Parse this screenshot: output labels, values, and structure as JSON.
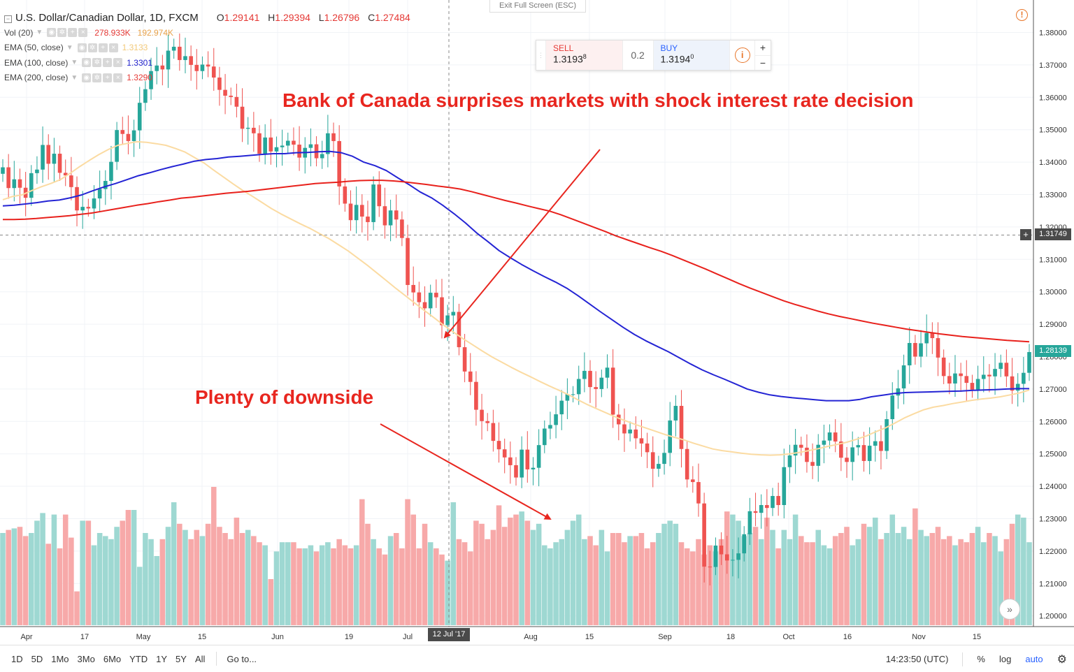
{
  "header": {
    "symbol": "U.S. Dollar/Canadian Dollar, 1D, FXCM",
    "o_label": "O",
    "o_value": "1.29141",
    "h_label": "H",
    "h_value": "1.29394",
    "l_label": "L",
    "l_value": "1.26796",
    "c_label": "C",
    "c_value": "1.27484",
    "fullscreen_label": "Exit Full Screen (ESC)"
  },
  "indicators": {
    "vol": {
      "name": "Vol (20)",
      "value_a": "278.933K",
      "value_b": "192.974K"
    },
    "ema50": {
      "name": "EMA (50, close)",
      "value": "1.3133"
    },
    "ema100": {
      "name": "EMA (100, close)",
      "value": "1.3301"
    },
    "ema200": {
      "name": "EMA (200, close)",
      "value": "1.3290"
    }
  },
  "trade_panel": {
    "sell_label": "SELL",
    "sell_price": "1.3193",
    "sell_sup": "8",
    "spread": "0.2",
    "buy_label": "BUY",
    "buy_price": "1.3194",
    "buy_sup": "0",
    "info_icon": "info-icon",
    "plus": "+",
    "minus": "−"
  },
  "annotations": {
    "headline": "Bank of Canada surprises markets with shock interest rate decision",
    "downside": "Plenty of downside"
  },
  "badges": {
    "crosshair_price": "1.31749",
    "last_price": "1.28139",
    "crosshair_date": "12 Jul '17"
  },
  "toolbar": {
    "timeframes": [
      "1D",
      "5D",
      "1Mo",
      "3Mo",
      "6Mo",
      "YTD",
      "1Y",
      "5Y",
      "All"
    ],
    "goto": "Go to...",
    "clock": "14:23:50 (UTC)",
    "percent": "%",
    "log": "log",
    "auto": "auto"
  },
  "colors": {
    "up": "#26a69a",
    "down": "#ef5350",
    "vol_up": "#9ed8d2",
    "vol_down": "#f7a9a9",
    "ema50": "#fbdba2",
    "ema100": "#2424d4",
    "ema200": "#e8211c",
    "annotation": "#e8261f",
    "grid": "#f0f3f7"
  },
  "chart_data": {
    "type": "candlestick",
    "title": "U.S. Dollar/Canadian Dollar, 1D, FXCM",
    "ylim": [
      1.195,
      1.385
    ],
    "y_ticks": [
      "1.38000",
      "1.37000",
      "1.36000",
      "1.35000",
      "1.34000",
      "1.33000",
      "1.32000",
      "1.31000",
      "1.30000",
      "1.29000",
      "1.28000",
      "1.27000",
      "1.26000",
      "1.25000",
      "1.24000",
      "1.23000",
      "1.22000",
      "1.21000",
      "1.20000"
    ],
    "x_ticks": [
      "Apr",
      "17",
      "May",
      "15",
      "Jun",
      "19",
      "Jul",
      "Aug",
      "15",
      "Sep",
      "18",
      "Oct",
      "16",
      "Nov",
      "15"
    ],
    "closes": [
      1.3384,
      1.332,
      1.3347,
      1.3321,
      1.329,
      1.3366,
      1.3377,
      1.3453,
      1.3395,
      1.3426,
      1.3367,
      1.3359,
      1.3323,
      1.3251,
      1.3262,
      1.3257,
      1.3288,
      1.3317,
      1.3342,
      1.3401,
      1.3499,
      1.3487,
      1.3465,
      1.3498,
      1.3583,
      1.3625,
      1.3681,
      1.3698,
      1.3686,
      1.3744,
      1.3756,
      1.3715,
      1.3727,
      1.37,
      1.3681,
      1.3701,
      1.3695,
      1.3661,
      1.3623,
      1.3605,
      1.3601,
      1.3571,
      1.3503,
      1.3506,
      1.3489,
      1.3426,
      1.3476,
      1.3433,
      1.3446,
      1.3451,
      1.3466,
      1.3454,
      1.3414,
      1.3444,
      1.3455,
      1.3412,
      1.3425,
      1.3489,
      1.3465,
      1.3325,
      1.3272,
      1.3221,
      1.3268,
      1.3232,
      1.3215,
      1.3331,
      1.3264,
      1.3205,
      1.3251,
      1.3223,
      1.3166,
      1.3021,
      1.2998,
      1.2968,
      1.2949,
      1.2997,
      1.2983,
      1.2897,
      1.2927,
      1.2938,
      1.2829,
      1.2754,
      1.2722,
      1.2636,
      1.2601,
      1.2595,
      1.254,
      1.2514,
      1.2489,
      1.2465,
      1.2427,
      1.2513,
      1.2452,
      1.2457,
      1.2527,
      1.2578,
      1.2589,
      1.2622,
      1.2664,
      1.2684,
      1.2684,
      1.2731,
      1.2756,
      1.2706,
      1.27,
      1.2735,
      1.2766,
      1.2621,
      1.2591,
      1.2563,
      1.2575,
      1.2548,
      1.2532,
      1.2505,
      1.2454,
      1.2469,
      1.2503,
      1.2603,
      1.2648,
      1.2515,
      1.2421,
      1.2413,
      1.2347,
      1.2152,
      1.2151,
      1.2217,
      1.219,
      1.2171,
      1.2173,
      1.2193,
      1.2252,
      1.2323,
      1.2318,
      1.2342,
      1.2333,
      1.237,
      1.2342,
      1.2459,
      1.2495,
      1.2528,
      1.2519,
      1.2475,
      1.2463,
      1.2528,
      1.2541,
      1.2566,
      1.2538,
      1.2488,
      1.2475,
      1.252,
      1.2527,
      1.2478,
      1.2525,
      1.2539,
      1.2509,
      1.2607,
      1.268,
      1.2702,
      1.2773,
      1.2842,
      1.28,
      1.2841,
      1.2873,
      1.2857,
      1.2797,
      1.274,
      1.2717,
      1.2748,
      1.274,
      1.2719,
      1.2698,
      1.2731,
      1.2744,
      1.2739,
      1.2762,
      1.2781,
      1.2739,
      1.2695,
      1.2716,
      1.275,
      1.2814
    ],
    "ema50": [
      1.3284,
      1.3294,
      1.3299,
      1.3312,
      1.3324,
      1.3334,
      1.3346,
      1.3365,
      1.3386,
      1.3405,
      1.3423,
      1.3439,
      1.3452,
      1.3458,
      1.3463,
      1.3461,
      1.3457,
      1.3452,
      1.3442,
      1.3431,
      1.3414,
      1.3397,
      1.3375,
      1.3354,
      1.3333,
      1.3313,
      1.3295,
      1.3276,
      1.3257,
      1.324,
      1.3225,
      1.321,
      1.3196,
      1.318,
      1.3164,
      1.3145,
      1.3126,
      1.3104,
      1.3082,
      1.3058,
      1.3034,
      1.301,
      1.2987,
      1.2964,
      1.2941,
      1.2919,
      1.2896,
      1.2875,
      1.2855,
      1.2836,
      1.2817,
      1.2799,
      1.2783,
      1.2767,
      1.2752,
      1.2738,
      1.2723,
      1.2709,
      1.2696,
      1.2682,
      1.2666,
      1.2651,
      1.2638,
      1.2625,
      1.2612,
      1.2601,
      1.259,
      1.258,
      1.257,
      1.256,
      1.2551,
      1.2543,
      1.2533,
      1.2524,
      1.2515,
      1.251,
      1.2506,
      1.2502,
      1.2499,
      1.2497,
      1.2496,
      1.2497,
      1.25,
      1.2504,
      1.251,
      1.2516,
      1.2523,
      1.2529,
      1.2536,
      1.2545,
      1.2555,
      1.2568,
      1.258,
      1.2595,
      1.2611,
      1.2624,
      1.2636,
      1.2644,
      1.2649,
      1.2655,
      1.266,
      1.2665,
      1.2669,
      1.2672,
      1.2676,
      1.2682,
      1.2688,
      1.2697
    ],
    "ema100": [
      1.3265,
      1.3267,
      1.3271,
      1.3275,
      1.328,
      1.3283,
      1.329,
      1.3299,
      1.3312,
      1.3324,
      1.3334,
      1.3346,
      1.3358,
      1.3367,
      1.3377,
      1.3386,
      1.3394,
      1.3403,
      1.3408,
      1.3411,
      1.3416,
      1.3418,
      1.3421,
      1.3424,
      1.3426,
      1.3426,
      1.3429,
      1.343,
      1.3432,
      1.3433,
      1.3429,
      1.3418,
      1.34,
      1.3389,
      1.3374,
      1.3352,
      1.3331,
      1.3308,
      1.329,
      1.3267,
      1.3241,
      1.3213,
      1.3182,
      1.3155,
      1.3127,
      1.3105,
      1.3084,
      1.3065,
      1.3047,
      1.303,
      1.3011,
      1.2988,
      1.2963,
      1.2938,
      1.2914,
      1.289,
      1.2868,
      1.2849,
      1.2832,
      1.2815,
      1.2796,
      1.2777,
      1.2759,
      1.2744,
      1.273,
      1.2715,
      1.27,
      1.269,
      1.2682,
      1.2677,
      1.2673,
      1.267,
      1.2667,
      1.2664,
      1.2664,
      1.2664,
      1.2668,
      1.2676,
      1.2681,
      1.2686,
      1.2689,
      1.269,
      1.2691,
      1.2692,
      1.2693,
      1.2694,
      1.2696,
      1.2697,
      1.2698,
      1.27,
      1.2701,
      1.2701
    ],
    "ema200": [
      1.3223,
      1.3223,
      1.3224,
      1.3226,
      1.3229,
      1.3232,
      1.3235,
      1.3239,
      1.3243,
      1.3249,
      1.3255,
      1.3261,
      1.3267,
      1.3272,
      1.3278,
      1.3283,
      1.3289,
      1.3292,
      1.3296,
      1.33,
      1.3304,
      1.3307,
      1.331,
      1.3314,
      1.3318,
      1.3322,
      1.3326,
      1.333,
      1.3334,
      1.3336,
      1.3338,
      1.3341,
      1.3343,
      1.3344,
      1.3344,
      1.3342,
      1.3339,
      1.3335,
      1.3331,
      1.3326,
      1.3322,
      1.3317,
      1.3309,
      1.33,
      1.3291,
      1.3282,
      1.3274,
      1.3265,
      1.3257,
      1.3249,
      1.3238,
      1.3225,
      1.3212,
      1.3199,
      1.3186,
      1.3172,
      1.316,
      1.3148,
      1.3136,
      1.3125,
      1.3112,
      1.3098,
      1.3084,
      1.307,
      1.3055,
      1.304,
      1.3025,
      1.3011,
      1.2998,
      1.2985,
      1.2972,
      1.2961,
      1.2951,
      1.2941,
      1.2932,
      1.2924,
      1.2917,
      1.291,
      1.2903,
      1.2897,
      1.2891,
      1.2885,
      1.288,
      1.2875,
      1.287,
      1.2866,
      1.2862,
      1.2859,
      1.2856,
      1.2853,
      1.285,
      1.2848,
      1.2846
    ],
    "volumes": [
      0.6,
      0.62,
      0.63,
      0.64,
      0.58,
      0.6,
      0.68,
      0.73,
      0.53,
      0.72,
      0.5,
      0.72,
      0.57,
      0.22,
      0.68,
      0.68,
      0.52,
      0.6,
      0.58,
      0.56,
      0.64,
      0.68,
      0.75,
      0.75,
      0.38,
      0.6,
      0.56,
      0.45,
      0.56,
      0.64,
      0.8,
      0.66,
      0.62,
      0.56,
      0.62,
      0.58,
      0.66,
      0.9,
      0.64,
      0.6,
      0.56,
      0.7,
      0.6,
      0.62,
      0.58,
      0.54,
      0.52,
      0.3,
      0.48,
      0.54,
      0.54,
      0.54,
      0.5,
      0.5,
      0.52,
      0.48,
      0.52,
      0.54,
      0.5,
      0.56,
      0.52,
      0.5,
      0.52,
      0.82,
      0.66,
      0.56,
      0.5,
      0.46,
      0.58,
      0.6,
      0.5,
      0.82,
      0.72,
      0.5,
      0.66,
      0.54,
      0.5,
      0.46,
      0.42,
      0.8,
      0.56,
      0.54,
      0.48,
      0.68,
      0.66,
      0.56,
      0.62,
      0.78,
      0.64,
      0.7,
      0.72,
      0.74,
      0.68,
      0.62,
      0.66,
      0.52,
      0.5,
      0.54,
      0.56,
      0.62,
      0.68,
      0.72,
      0.56,
      0.58,
      0.52,
      0.62,
      0.48,
      0.6,
      0.6,
      0.54,
      0.58,
      0.58,
      0.6,
      0.5,
      0.54,
      0.6,
      0.66,
      0.68,
      0.66,
      0.54,
      0.5,
      0.48,
      0.56,
      0.46,
      0.52,
      0.48,
      0.56,
      0.74,
      0.72,
      0.68,
      0.58,
      0.6,
      0.64,
      0.56,
      0.7,
      0.62,
      0.5,
      0.62,
      0.56,
      0.72,
      0.58,
      0.54,
      0.54,
      0.62,
      0.52,
      0.5,
      0.58,
      0.6,
      0.64,
      0.52,
      0.56,
      0.66,
      0.64,
      0.7,
      0.56,
      0.6,
      0.72,
      0.6,
      0.64,
      0.56,
      0.76,
      0.62,
      0.58,
      0.6,
      0.64,
      0.56,
      0.58,
      0.52,
      0.56,
      0.54,
      0.6,
      0.64,
      0.54,
      0.6,
      0.58,
      0.48,
      0.56,
      0.66,
      0.72,
      0.7,
      0.54,
      0.6,
      0.62,
      0.56
    ]
  }
}
